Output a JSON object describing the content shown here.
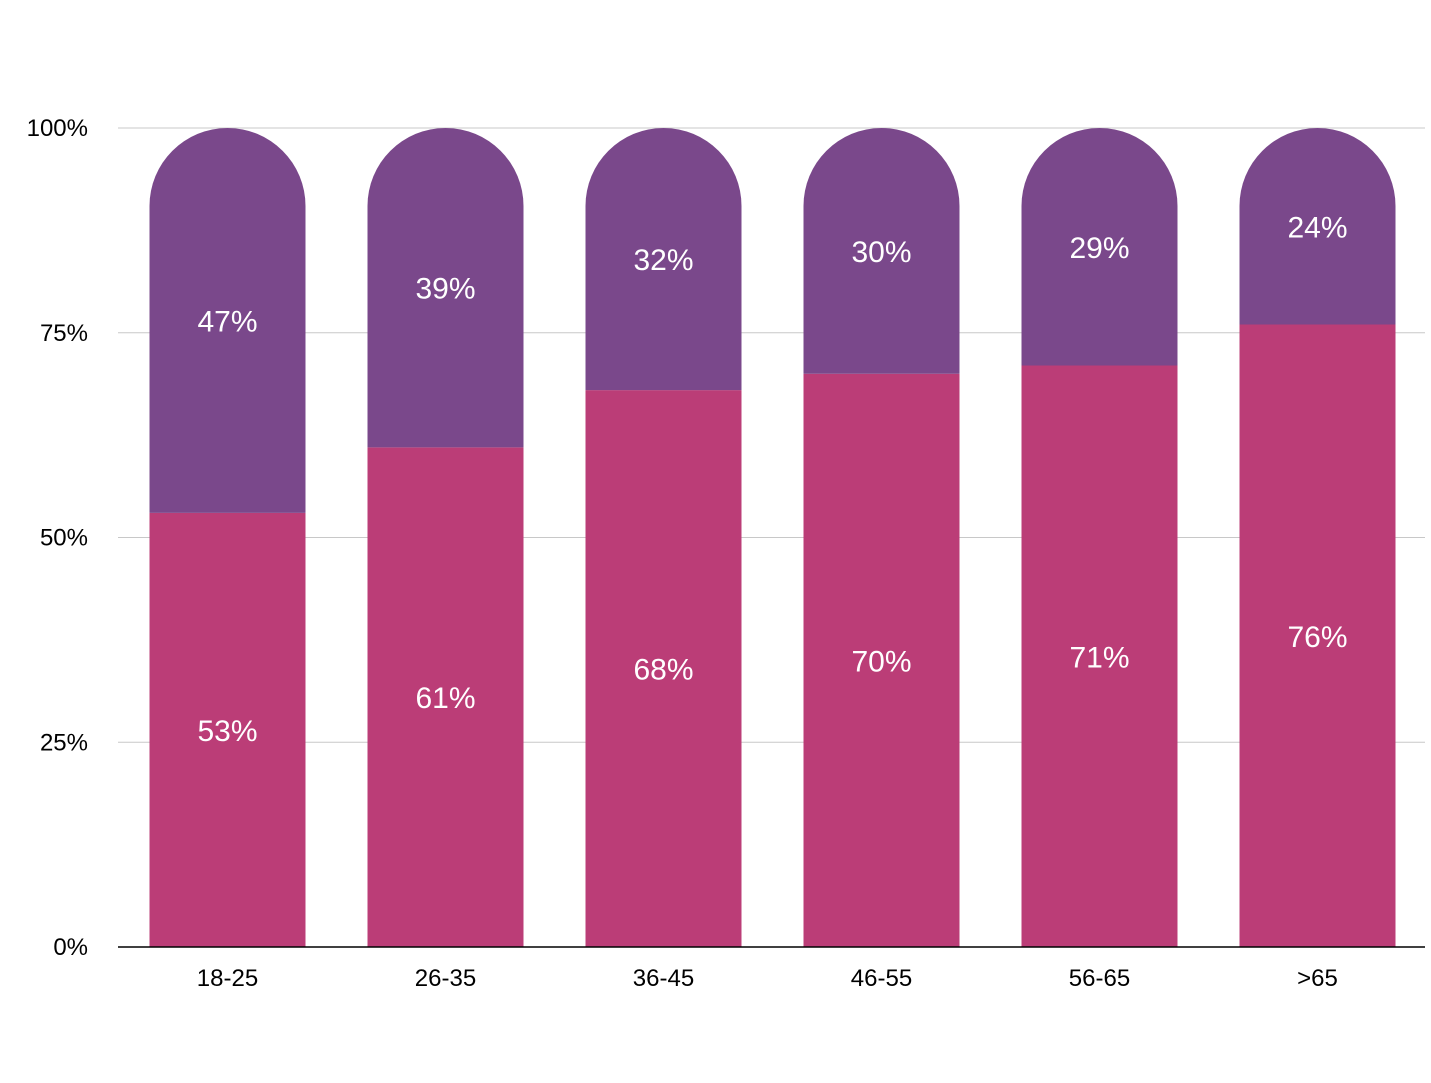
{
  "chart_data": {
    "type": "bar",
    "stacked": true,
    "categories": [
      "18-25",
      "26-35",
      "36-45",
      "46-55",
      "56-65",
      ">65"
    ],
    "series": [
      {
        "values": [
          53,
          61,
          68,
          70,
          71,
          76
        ],
        "labels": [
          "53%",
          "61%",
          "68%",
          "70%",
          "71%",
          "76%"
        ],
        "color": "#bb3d77"
      },
      {
        "values": [
          47,
          39,
          32,
          30,
          29,
          24
        ],
        "labels": [
          "47%",
          "39%",
          "32%",
          "30%",
          "29%",
          "24%"
        ],
        "color": "#7a488b"
      }
    ],
    "y_ticks": [
      "0%",
      "25%",
      "50%",
      "75%",
      "100%"
    ],
    "ylim": [
      0,
      100
    ],
    "grid": true,
    "legend": "none",
    "title": "",
    "xlabel": "",
    "ylabel": ""
  }
}
